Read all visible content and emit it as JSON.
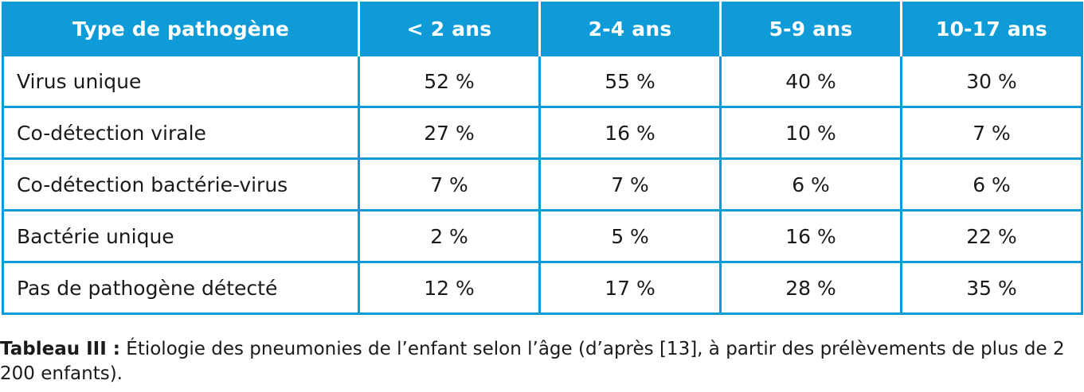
{
  "table": {
    "headers": [
      "Type de pathogène",
      "< 2 ans",
      "2-4 ans",
      "5-9 ans",
      "10-17 ans"
    ],
    "rows": [
      {
        "label": "Virus unique",
        "values": [
          "52 %",
          "55 %",
          "40 %",
          "30 %"
        ]
      },
      {
        "label": "Co-détection virale",
        "values": [
          "27 %",
          "16 %",
          "10 %",
          "7 %"
        ]
      },
      {
        "label": "Co-détection bactérie-virus",
        "values": [
          "7 %",
          "7 %",
          "6 %",
          "6 %"
        ]
      },
      {
        "label": "Bactérie unique",
        "values": [
          "2 %",
          "5 %",
          "16 %",
          "22 %"
        ]
      },
      {
        "label": "Pas de pathogène détecté",
        "values": [
          "12 %",
          "17 %",
          "28 %",
          "35 %"
        ]
      }
    ]
  },
  "caption": {
    "label": "Tableau III :",
    "text": " Étiologie des pneumonies de l’enfant selon l’âge (d’après [13], à partir des prélèvements de plus de 2 200 enfants)."
  },
  "colors": {
    "header_background": "#0e9bd8",
    "header_text": "#ffffff",
    "border": "#0e9bd8"
  }
}
